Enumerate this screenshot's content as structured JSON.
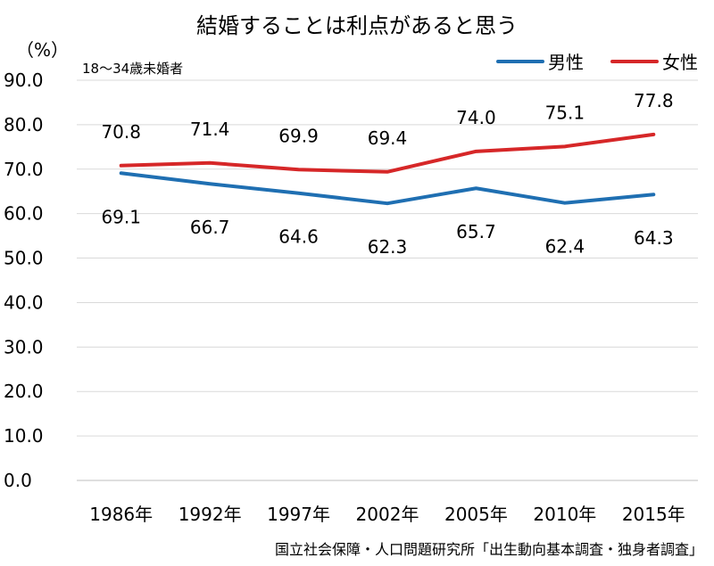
{
  "chart_data": {
    "type": "line",
    "title": "結婚することは利点があると思う",
    "ylabel": "（%）",
    "note": "18〜34歳未婚者",
    "categories": [
      "1986年",
      "1992年",
      "1997年",
      "2002年",
      "2005年",
      "2010年",
      "2015年"
    ],
    "series": [
      {
        "name": "男性",
        "color": "#1f6fb2",
        "values": [
          69.1,
          66.7,
          64.6,
          62.3,
          65.7,
          62.4,
          64.3
        ]
      },
      {
        "name": "女性",
        "color": "#d62728",
        "values": [
          70.8,
          71.4,
          69.9,
          69.4,
          74.0,
          75.1,
          77.8
        ]
      }
    ],
    "ylim": [
      0,
      90
    ],
    "yticks": [
      "0.0",
      "10.0",
      "20.0",
      "30.0",
      "40.0",
      "50.0",
      "60.0",
      "70.0",
      "80.0",
      "90.0"
    ],
    "grid": true,
    "legend": "top-right",
    "source": "国立社会保障・人口問題研究所「出生動向基本調査・独身者調査」"
  }
}
